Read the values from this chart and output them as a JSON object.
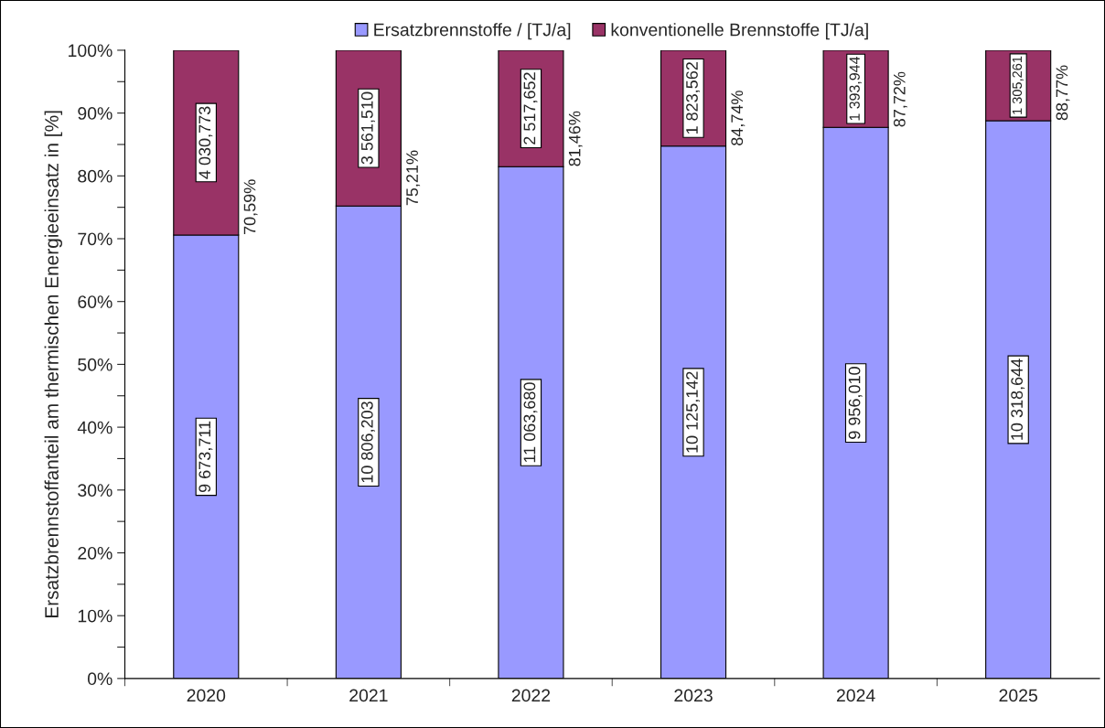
{
  "chart_data": {
    "type": "bar",
    "stacked": true,
    "ylabel": "Ersatzbrennstoffanteil am thermischen Energieeinsatz in [%]",
    "categories": [
      "2020",
      "2021",
      "2022",
      "2023",
      "2024",
      "2025"
    ],
    "series": [
      {
        "name": "Ersatzbrennstoffe / [TJ/a]",
        "color": "#9999ff",
        "values": [
          70.59,
          75.21,
          81.46,
          84.74,
          87.72,
          88.77
        ],
        "value_labels": [
          "9 673,711",
          "10 806,203",
          "11 063,680",
          "10 125,142",
          "9 956,010",
          "10 318,644"
        ]
      },
      {
        "name": "konventionelle Brennstoffe [TJ/a]",
        "color": "#993366",
        "values": [
          29.41,
          24.79,
          18.54,
          15.26,
          12.28,
          11.23
        ],
        "value_labels": [
          "4 030,773",
          "3 561,510",
          "2 517,652",
          "1 823,562",
          "1 393,944",
          "1 305,261"
        ]
      }
    ],
    "ylim": [
      0,
      100
    ],
    "yticks": [
      {
        "value": 0,
        "label": "0%"
      },
      {
        "value": 5,
        "label": null
      },
      {
        "value": 10,
        "label": "10%"
      },
      {
        "value": 15,
        "label": null
      },
      {
        "value": 20,
        "label": "20%"
      },
      {
        "value": 25,
        "label": null
      },
      {
        "value": 30,
        "label": "30%"
      },
      {
        "value": 35,
        "label": null
      },
      {
        "value": 40,
        "label": "40%"
      },
      {
        "value": 45,
        "label": null
      },
      {
        "value": 50,
        "label": "50%"
      },
      {
        "value": 55,
        "label": null
      },
      {
        "value": 60,
        "label": "60%"
      },
      {
        "value": 65,
        "label": null
      },
      {
        "value": 70,
        "label": "70%"
      },
      {
        "value": 75,
        "label": null
      },
      {
        "value": 80,
        "label": "80%"
      },
      {
        "value": 85,
        "label": null
      },
      {
        "value": 90,
        "label": "90%"
      },
      {
        "value": 95,
        "label": null
      },
      {
        "value": 100,
        "label": "100%"
      }
    ],
    "annotations": [
      {
        "text": "70,59%",
        "x": "2020",
        "y": 70.59
      },
      {
        "text": "75,21%",
        "x": "2021",
        "y": 75.21
      },
      {
        "text": "81,46%",
        "x": "2022",
        "y": 81.46
      },
      {
        "text": "84,74%",
        "x": "2023",
        "y": 84.74
      },
      {
        "text": "87,72%",
        "x": "2024",
        "y": 87.72
      },
      {
        "text": "88,77%",
        "x": "2025",
        "y": 88.77
      }
    ],
    "legend": "top",
    "grid": false
  }
}
